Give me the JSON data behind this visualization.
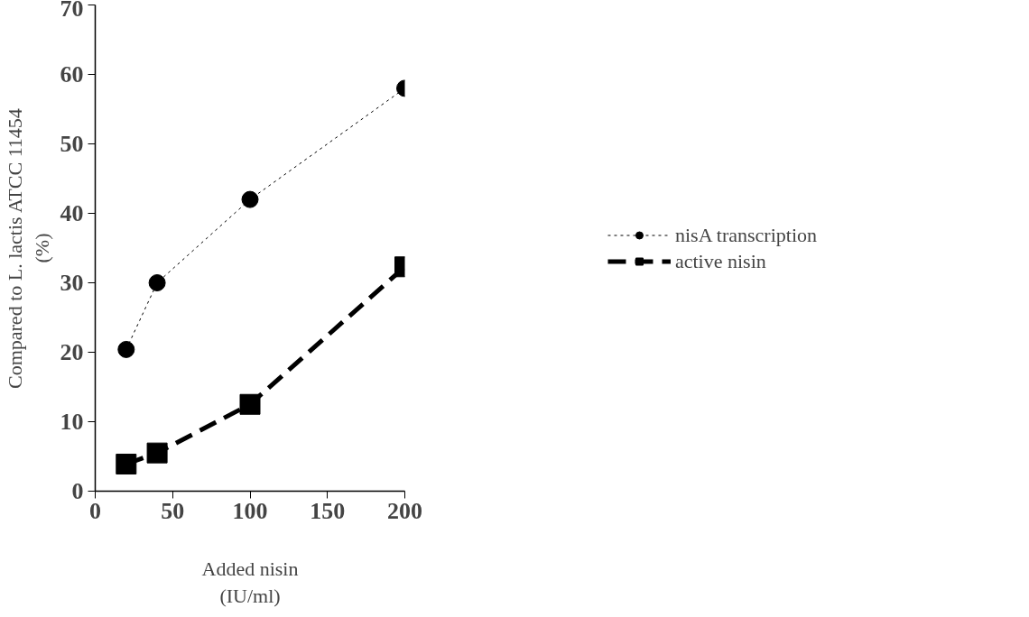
{
  "chart_data": {
    "type": "line",
    "xlabel": "Added nisin\n(IU/ml)",
    "ylabel": "Compared to L. lactis ATCC 11454\n(%)",
    "x": [
      20,
      40,
      100,
      200
    ],
    "series": [
      {
        "name": "nisA transcription",
        "color": "#000000",
        "values": [
          20.4,
          30,
          42,
          58
        ],
        "marker": "circle",
        "line_style": "dotted"
      },
      {
        "name": "active nisin",
        "color": "#000000",
        "values": [
          3.9,
          5.5,
          12.5,
          32.3
        ],
        "marker": "square",
        "line_style": "dashed"
      }
    ],
    "xlim": [
      0,
      200
    ],
    "xticks": [
      0,
      50,
      100,
      150,
      200
    ],
    "ylim": [
      0,
      70
    ],
    "yticks": [
      0,
      10,
      20,
      30,
      40,
      50,
      60,
      70
    ],
    "grid": false,
    "legend": "right"
  }
}
